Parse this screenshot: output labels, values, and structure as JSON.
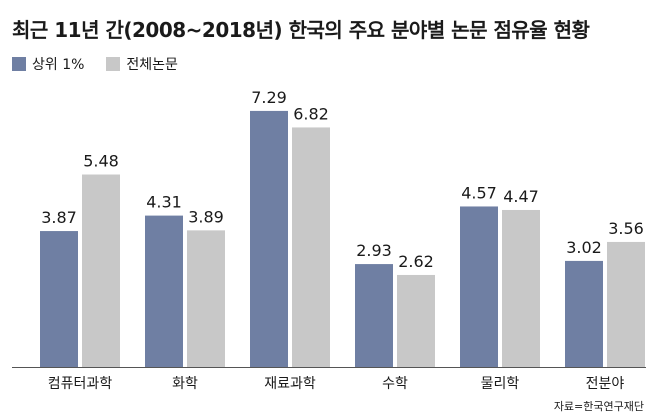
{
  "title": "최근 11년 간(2008~2018년) 한국의 주요 분야별 논문 점유율 현황",
  "source": "자료=한국연구재단",
  "chart_data": {
    "type": "bar",
    "title": "최근 11년 간(2008~2018년) 한국의 주요 분야별 논문 점유율 현황",
    "categories": [
      "컴퓨터과학",
      "화학",
      "재료과학",
      "수학",
      "물리학",
      "전분야"
    ],
    "series": [
      {
        "name": "상위 1%",
        "color": "#6f7fa3",
        "values": [
          3.87,
          4.31,
          7.29,
          2.93,
          4.57,
          3.02
        ]
      },
      {
        "name": "전체논문",
        "color": "#c8c8c8",
        "values": [
          5.48,
          3.89,
          6.82,
          2.62,
          4.47,
          3.56
        ]
      }
    ],
    "value_labels": [
      [
        "3.87",
        "4.31",
        "7.29",
        "2.93",
        "4.57",
        "3.02"
      ],
      [
        "5.48",
        "3.89",
        "6.82",
        "2.62",
        "4.47",
        "3.56"
      ]
    ],
    "ylim": [
      0,
      8
    ],
    "grid": false,
    "legend_position": "top-left"
  }
}
